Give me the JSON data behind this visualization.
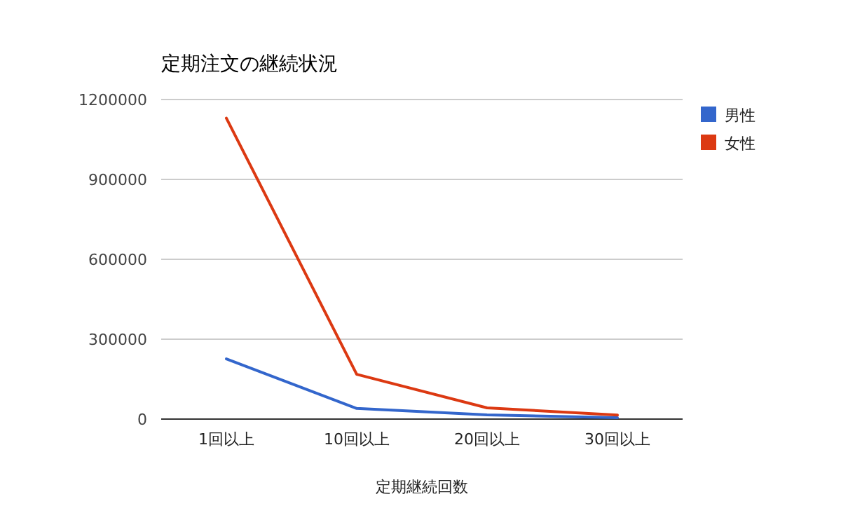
{
  "chart_data": {
    "type": "line",
    "title": "定期注文の継続状況",
    "xlabel": "定期継続回数",
    "categories": [
      "1回以上",
      "10回以上",
      "20回以上",
      "30回以上"
    ],
    "series": [
      {
        "name": "男性",
        "color": "#3366cc",
        "values": [
          226000,
          40000,
          16000,
          5000
        ]
      },
      {
        "name": "女性",
        "color": "#dc3912",
        "values": [
          1130000,
          168000,
          42000,
          15000
        ]
      }
    ],
    "ylim": [
      0,
      1200000
    ],
    "yticks": [
      0,
      300000,
      600000,
      900000,
      1200000
    ],
    "grid": "y",
    "legend": "right",
    "marker": "none",
    "line_style": "solid"
  }
}
